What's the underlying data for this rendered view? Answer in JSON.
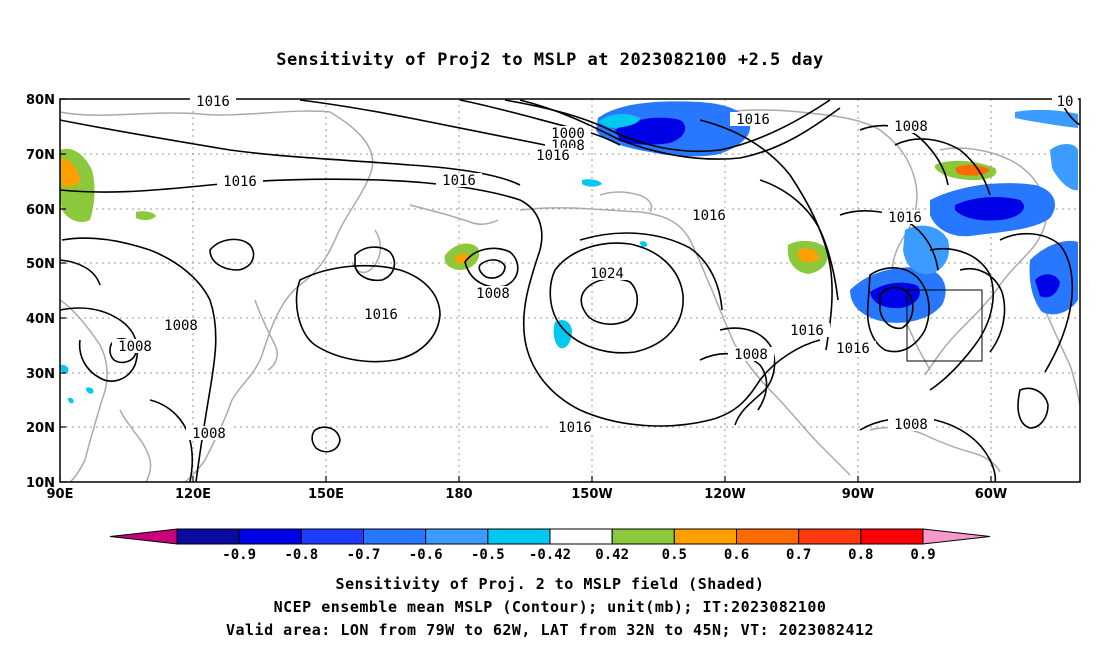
{
  "title": "Sensitivity of Proj2 to MSLP at 2023082100 +2.5 day",
  "map": {
    "lat_ticks": [
      "80N",
      "70N",
      "60N",
      "50N",
      "40N",
      "30N",
      "20N",
      "10N"
    ],
    "lon_ticks": [
      "90E",
      "120E",
      "150E",
      "180",
      "150W",
      "120W",
      "90W",
      "60W"
    ],
    "contour_labels": [
      "1016",
      "1016",
      "1000",
      "1008",
      "1016",
      "1016",
      "1016",
      "1008",
      "1016",
      "1016",
      "1008",
      "1024",
      "1016",
      "1008",
      "1008",
      "1016",
      "1016",
      "1008",
      "1016",
      "1008",
      "1016",
      "1008",
      "1016",
      "10"
    ],
    "valid_area": {
      "lon_from": "79W",
      "lon_to": "62W",
      "lat_from": "32N",
      "lat_to": "45N"
    }
  },
  "colorbar": {
    "labels": [
      "-0.9",
      "-0.8",
      "-0.7",
      "-0.6",
      "-0.5",
      "-0.42",
      "0.42",
      "0.5",
      "0.6",
      "0.7",
      "0.8",
      "0.9"
    ],
    "colors": [
      "#c8007a",
      "#0a0a9e",
      "#0000e6",
      "#1e3cff",
      "#2878ff",
      "#3c9bff",
      "#00c8f0",
      "#ffffff",
      "#8cc83c",
      "#ffa000",
      "#ff6a00",
      "#ff3a10",
      "#ff0000",
      "#f59ac8"
    ]
  },
  "captions": {
    "line1": "Sensitivity of Proj. 2 to MSLP field (Shaded)",
    "line2": "NCEP ensemble mean MSLP (Contour); unit(mb); IT:2023082100",
    "line3": "Valid area: LON from 79W to 62W, LAT from 32N to 45N; VT: 2023082412"
  }
}
